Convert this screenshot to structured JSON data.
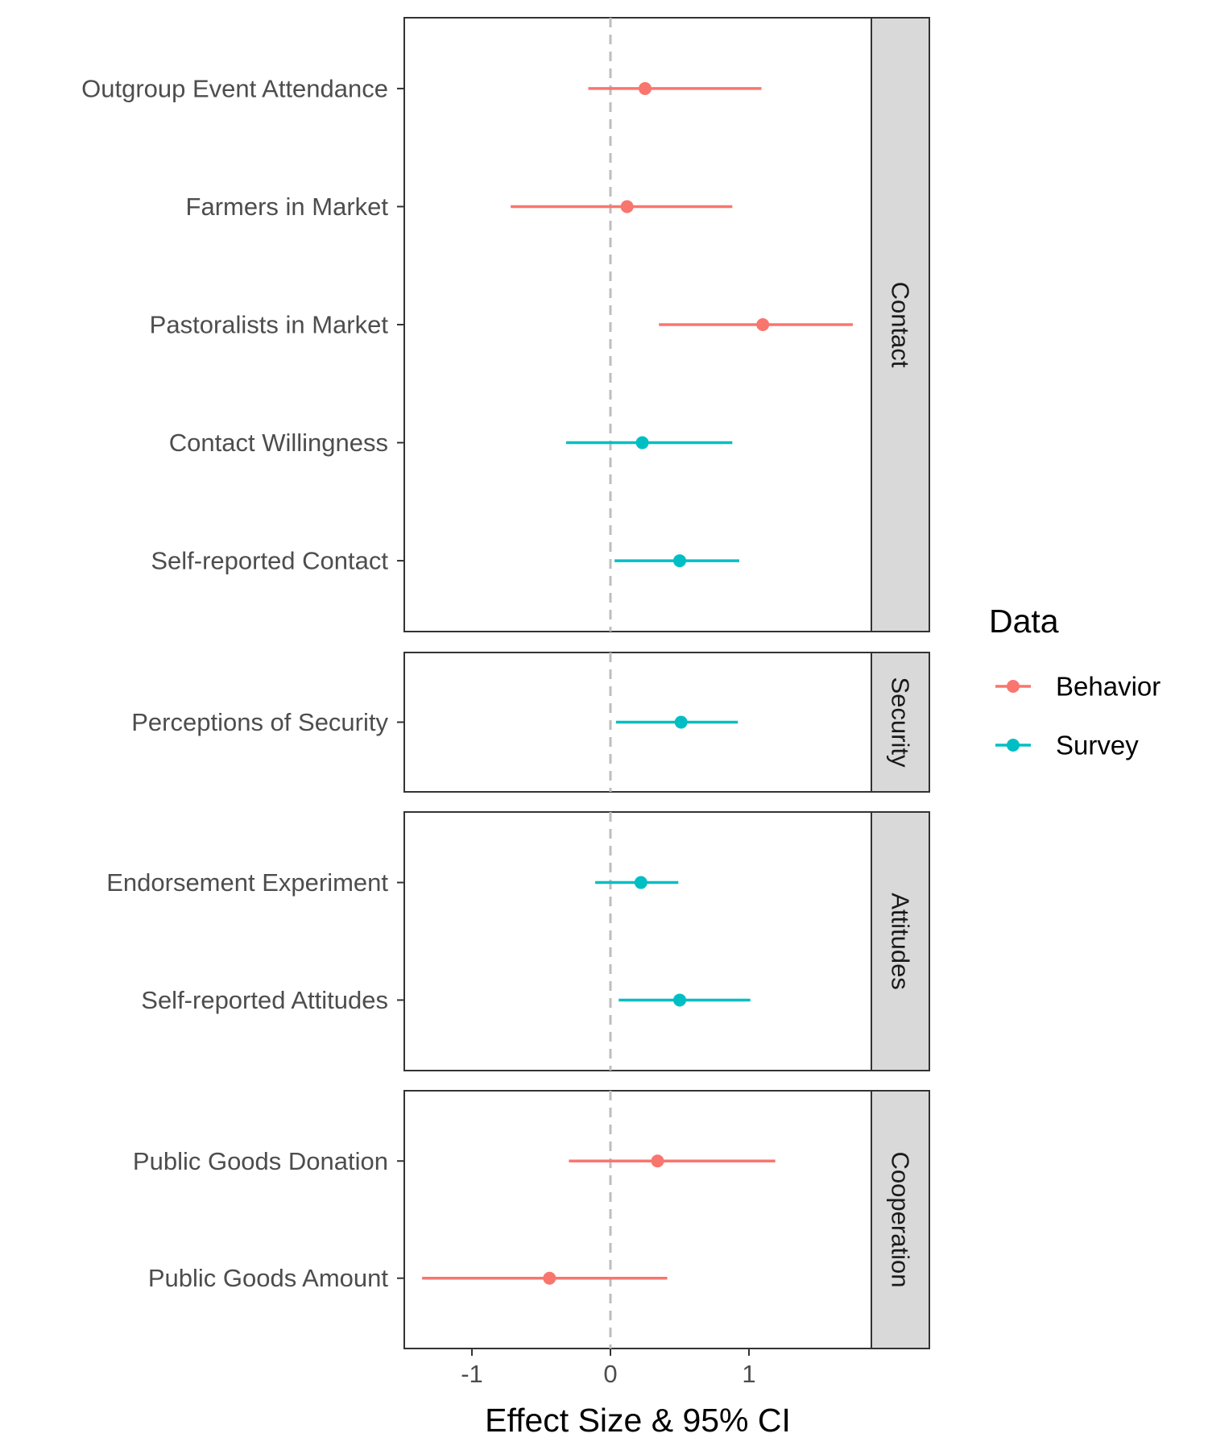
{
  "chart_data": {
    "type": "forest",
    "xlabel": "Effect Size & 95% CI",
    "xticks": [
      -1,
      0,
      1
    ],
    "xtick_labels": [
      "-1",
      "0",
      "1"
    ],
    "xlim": [
      -1.5,
      1.9
    ],
    "reference_line": 0,
    "legend": {
      "title": "Data",
      "position": "right",
      "items": [
        {
          "name": "Behavior",
          "color": "#F8766D"
        },
        {
          "name": "Survey",
          "color": "#00BFC4"
        }
      ]
    },
    "panels": [
      {
        "name": "Contact",
        "rows": [
          {
            "label": "Outgroup Event Attendance",
            "series": "Behavior",
            "estimate": 0.25,
            "lower": -0.16,
            "upper": 1.09
          },
          {
            "label": "Farmers in Market",
            "series": "Behavior",
            "estimate": 0.12,
            "lower": -0.72,
            "upper": 0.88
          },
          {
            "label": "Pastoralists in Market",
            "series": "Behavior",
            "estimate": 1.1,
            "lower": 0.35,
            "upper": 1.75
          },
          {
            "label": "Contact Willingness",
            "series": "Survey",
            "estimate": 0.23,
            "lower": -0.32,
            "upper": 0.88
          },
          {
            "label": "Self-reported Contact",
            "series": "Survey",
            "estimate": 0.5,
            "lower": 0.03,
            "upper": 0.93
          }
        ]
      },
      {
        "name": "Security",
        "rows": [
          {
            "label": "Perceptions of Security",
            "series": "Survey",
            "estimate": 0.51,
            "lower": 0.04,
            "upper": 0.92
          }
        ]
      },
      {
        "name": "Attitudes",
        "rows": [
          {
            "label": "Endorsement Experiment",
            "series": "Survey",
            "estimate": 0.22,
            "lower": -0.11,
            "upper": 0.49
          },
          {
            "label": "Self-reported Attitudes",
            "series": "Survey",
            "estimate": 0.5,
            "lower": 0.06,
            "upper": 1.01
          }
        ]
      },
      {
        "name": "Cooperation",
        "rows": [
          {
            "label": "Public Goods Donation",
            "series": "Behavior",
            "estimate": 0.34,
            "lower": -0.3,
            "upper": 1.19
          },
          {
            "label": "Public Goods Amount",
            "series": "Behavior",
            "estimate": -0.44,
            "lower": -1.36,
            "upper": 0.41
          }
        ]
      }
    ]
  }
}
